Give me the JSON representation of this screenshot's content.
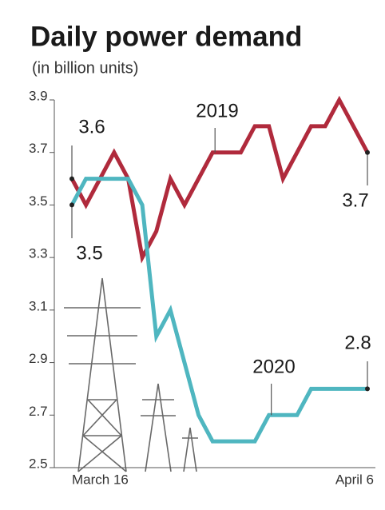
{
  "chart_data": {
    "type": "line",
    "title": "Daily power demand",
    "subtitle": "(in billion units)",
    "categories": [
      "March 16",
      null,
      null,
      null,
      null,
      null,
      null,
      null,
      null,
      null,
      null,
      null,
      null,
      null,
      null,
      null,
      null,
      null,
      null,
      null,
      null,
      "April 6"
    ],
    "series": [
      {
        "name": "2019",
        "color": "#b02a3c",
        "values": [
          3.6,
          3.5,
          3.6,
          3.7,
          3.6,
          3.3,
          3.4,
          3.6,
          3.5,
          3.6,
          3.7,
          3.7,
          3.7,
          3.8,
          3.8,
          3.6,
          3.7,
          3.8,
          3.8,
          3.9,
          3.8,
          3.7
        ]
      },
      {
        "name": "2020",
        "color": "#4fb6c0",
        "values": [
          3.5,
          3.6,
          3.6,
          3.6,
          3.6,
          3.5,
          3.0,
          3.1,
          2.9,
          2.7,
          2.6,
          2.6,
          2.6,
          2.6,
          2.7,
          2.7,
          2.7,
          2.8,
          2.8,
          2.8,
          2.8,
          2.8
        ]
      }
    ],
    "ylim": [
      2.5,
      3.9
    ],
    "yticks": [
      2.5,
      2.7,
      2.9,
      3.1,
      3.3,
      3.5,
      3.7,
      3.9
    ]
  }
}
